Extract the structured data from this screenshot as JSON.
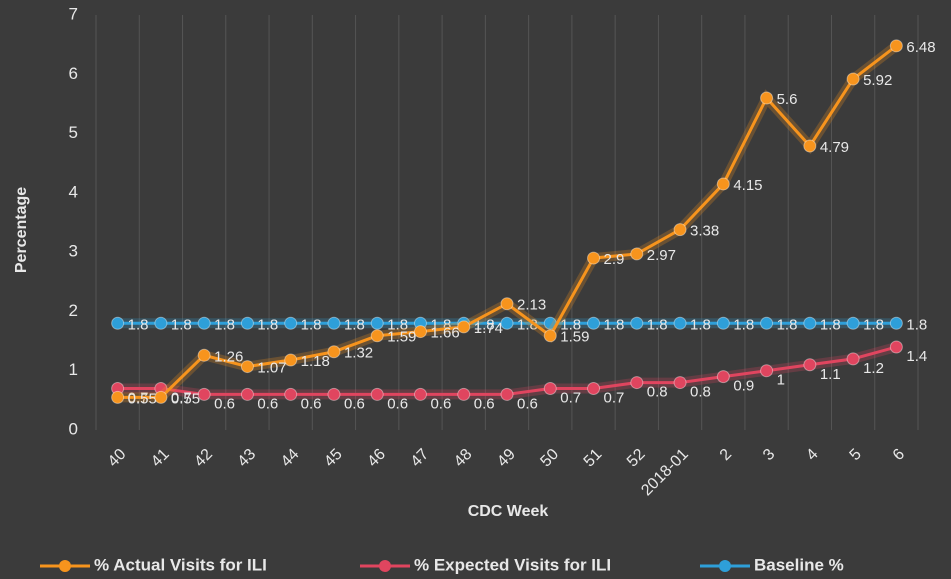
{
  "chart_data": {
    "type": "line",
    "x_label": "CDC Week",
    "y_label": "Percentage",
    "categories": [
      "40",
      "41",
      "42",
      "43",
      "44",
      "45",
      "46",
      "47",
      "48",
      "49",
      "50",
      "51",
      "52",
      "2018-01",
      "2",
      "3",
      "4",
      "5",
      "6"
    ],
    "series": [
      {
        "name": "% Actual Visits for ILI",
        "color": "#f7941d",
        "values": [
          0.55,
          0.55,
          1.26,
          1.07,
          1.18,
          1.32,
          1.59,
          1.66,
          1.74,
          2.13,
          1.59,
          2.9,
          2.97,
          3.38,
          4.15,
          5.6,
          4.79,
          5.92,
          6.48
        ]
      },
      {
        "name": "% Expected Visits for ILI",
        "color": "#e0455f",
        "values": [
          0.7,
          0.7,
          0.6,
          0.6,
          0.6,
          0.6,
          0.6,
          0.6,
          0.6,
          0.6,
          0.7,
          0.7,
          0.8,
          0.8,
          0.9,
          1,
          1.1,
          1.2,
          1.4
        ]
      },
      {
        "name": "Baseline %",
        "color": "#2e9fd9",
        "values": [
          1.8,
          1.8,
          1.8,
          1.8,
          1.8,
          1.8,
          1.8,
          1.8,
          1.8,
          1.8,
          1.8,
          1.8,
          1.8,
          1.8,
          1.8,
          1.8,
          1.8,
          1.8,
          1.8
        ]
      }
    ],
    "ylim": [
      0,
      7
    ],
    "yticks": [
      0,
      1,
      2,
      3,
      4,
      5,
      6,
      7
    ],
    "grid": false,
    "legend": "bottom"
  }
}
